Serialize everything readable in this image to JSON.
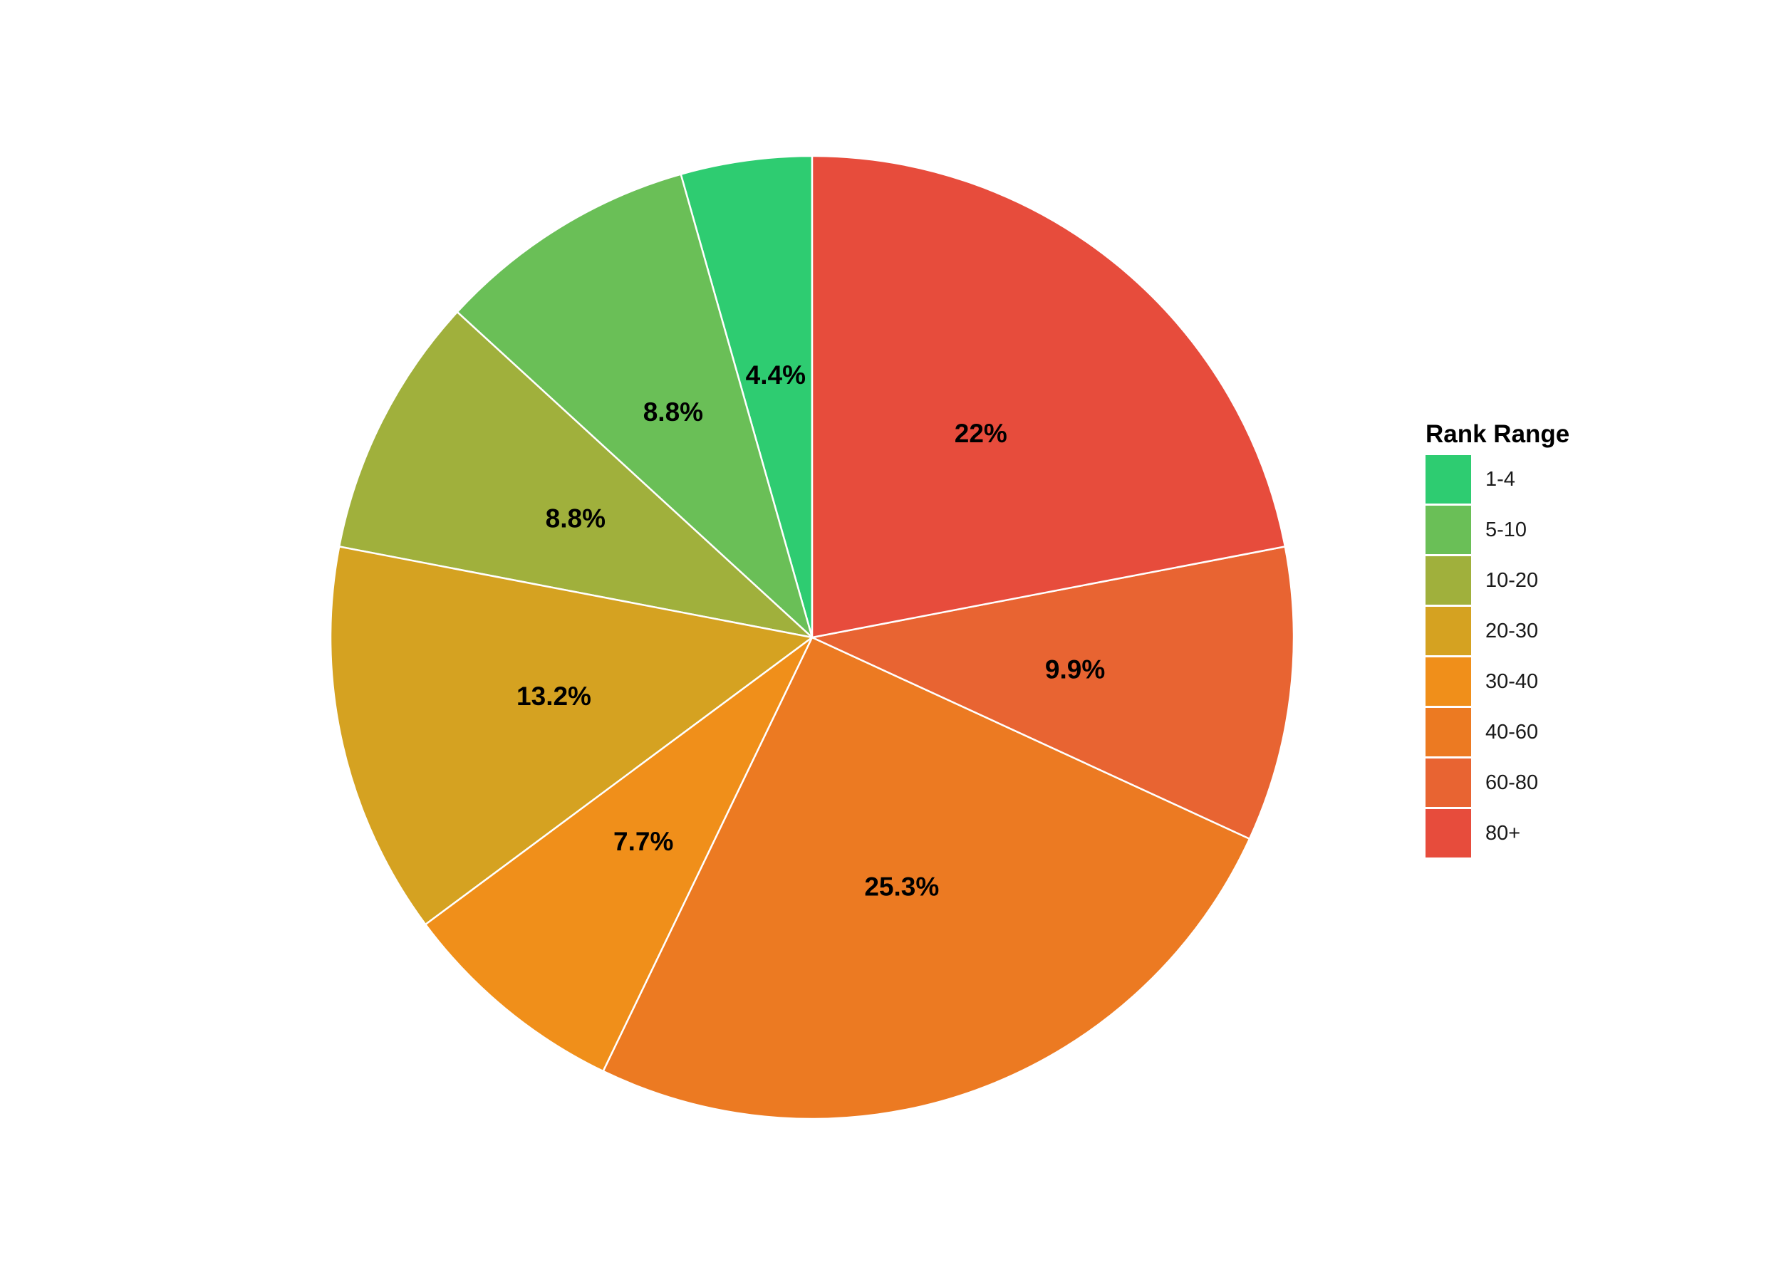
{
  "chart_data": {
    "type": "pie",
    "legend_title": "Rank Range",
    "legend_position": "right",
    "start": "12 o'clock",
    "direction": "counter-clockwise",
    "slice_border_color": "#ffffff",
    "slices": [
      {
        "label": "1-4",
        "value": 4.4,
        "display": "4.4%",
        "color": "#2ecc71"
      },
      {
        "label": "5-10",
        "value": 8.8,
        "display": "8.8%",
        "color": "#6abf57"
      },
      {
        "label": "10-20",
        "value": 8.8,
        "display": "8.8%",
        "color": "#a0b03c"
      },
      {
        "label": "20-30",
        "value": 13.2,
        "display": "13.2%",
        "color": "#d5a221"
      },
      {
        "label": "30-40",
        "value": 7.7,
        "display": "7.7%",
        "color": "#f08f1a"
      },
      {
        "label": "40-60",
        "value": 25.3,
        "display": "25.3%",
        "color": "#ec7a22"
      },
      {
        "label": "60-80",
        "value": 9.9,
        "display": "9.9%",
        "color": "#e86432"
      },
      {
        "label": "80+",
        "value": 22,
        "display": "22%",
        "color": "#e74c3c"
      }
    ]
  }
}
